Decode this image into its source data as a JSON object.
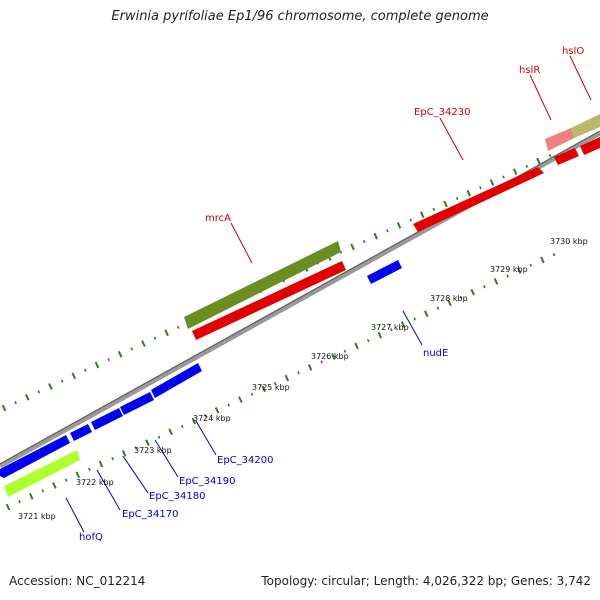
{
  "title": "Erwinia pyrifoliae Ep1/96 chromosome, complete genome",
  "footer": {
    "accession": "Accession: NC_012214",
    "summary": "Topology: circular; Length: 4,026,322 bp; Genes: 3,742"
  },
  "colors": {
    "forward_cds": "#ff0000",
    "reverse_cds": "#0000ee",
    "backbone": "#8c8c8c",
    "tick": "#2e7d1e",
    "forward_label": "#cc0000",
    "reverse_label": "#0000cc",
    "olive_feature": "#6b8e23",
    "lime_feature": "#adff2f",
    "pink_feature": "#f08080",
    "khaki_feature": "#bdb76b"
  },
  "scale_labels": [
    "3721 kbp",
    "3722 kbp",
    "3723 kbp",
    "3724 kbp",
    "3725 kbp",
    "3726 kbp",
    "3727 kbp",
    "3728 kbp",
    "3729 kbp",
    "3730 kbp"
  ],
  "forward_gene_labels": [
    "mrcA",
    "EpC_34230",
    "hslR",
    "hslO"
  ],
  "reverse_gene_labels": [
    "hofQ",
    "EpC_34170",
    "EpC_34180",
    "EpC_34190",
    "EpC_34200",
    "nudE"
  ]
}
